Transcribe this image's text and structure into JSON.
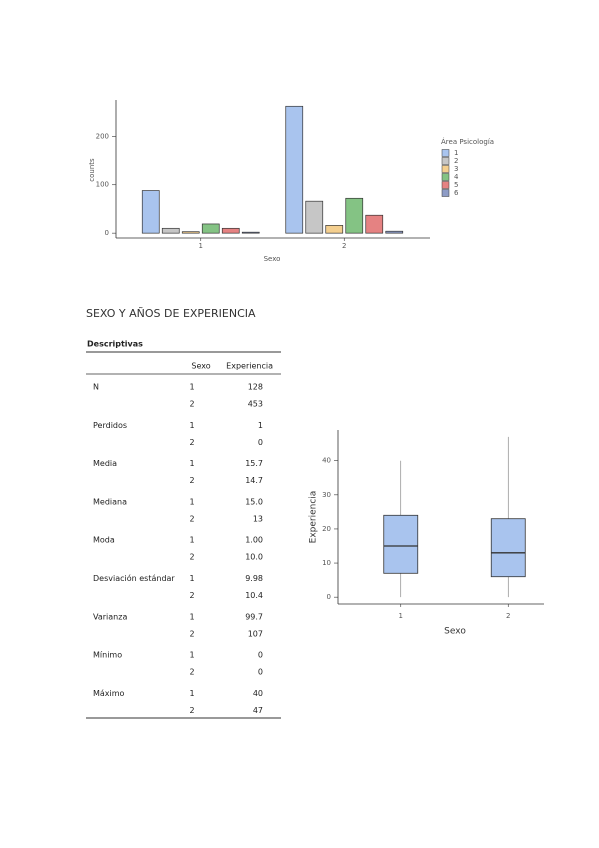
{
  "chart_data": [
    {
      "type": "bar",
      "xlabel": "Sexo",
      "ylabel": "counts",
      "legend_title": "Área Psicología",
      "categories": [
        "1",
        "2"
      ],
      "series": [
        {
          "name": "1",
          "color": "#a9c4ee",
          "values": [
            88,
            262
          ]
        },
        {
          "name": "2",
          "color": "#c6c6c6",
          "values": [
            10,
            66
          ]
        },
        {
          "name": "3",
          "color": "#f4cf8f",
          "values": [
            3,
            16
          ]
        },
        {
          "name": "4",
          "color": "#84c384",
          "values": [
            19,
            72
          ]
        },
        {
          "name": "5",
          "color": "#e58282",
          "values": [
            10,
            37
          ]
        },
        {
          "name": "6",
          "color": "#8e9cc6",
          "values": [
            2,
            4
          ]
        }
      ],
      "ylim": [
        -10,
        275
      ],
      "yticks": [
        0,
        100,
        200
      ],
      "grid": false,
      "legend": "right"
    },
    {
      "type": "box",
      "xlabel": "Sexo",
      "ylabel": "Experiencia",
      "color": "#a9c4ee",
      "categories": [
        "1",
        "2"
      ],
      "boxes": [
        {
          "min": 0,
          "q1": 7,
          "median": 15,
          "q3": 24,
          "max": 40
        },
        {
          "min": 0,
          "q1": 6,
          "median": 13,
          "q3": 23,
          "max": 47
        }
      ],
      "ylim": [
        -2,
        49
      ],
      "yticks": [
        0,
        10,
        20,
        30,
        40
      ],
      "grid": false
    }
  ],
  "heading": "SEXO Y AÑOS DE EXPERIENCIA",
  "table": {
    "title": "Descriptivas",
    "headers": [
      "Sexo",
      "Experiencia"
    ],
    "groups": [
      {
        "label": "N",
        "rows": [
          [
            "1",
            "128"
          ],
          [
            "2",
            "453"
          ]
        ]
      },
      {
        "label": "Perdidos",
        "rows": [
          [
            "1",
            "1"
          ],
          [
            "2",
            "0"
          ]
        ]
      },
      {
        "label": "Media",
        "rows": [
          [
            "1",
            "15.7"
          ],
          [
            "2",
            "14.7"
          ]
        ]
      },
      {
        "label": "Mediana",
        "rows": [
          [
            "1",
            "15.0"
          ],
          [
            "2",
            "13"
          ]
        ]
      },
      {
        "label": "Moda",
        "rows": [
          [
            "1",
            "1.00"
          ],
          [
            "2",
            "10.0"
          ]
        ]
      },
      {
        "label": "Desviación estándar",
        "rows": [
          [
            "1",
            "9.98"
          ],
          [
            "2",
            "10.4"
          ]
        ]
      },
      {
        "label": "Varianza",
        "rows": [
          [
            "1",
            "99.7"
          ],
          [
            "2",
            "107"
          ]
        ]
      },
      {
        "label": "Mínimo",
        "rows": [
          [
            "1",
            "0"
          ],
          [
            "2",
            "0"
          ]
        ]
      },
      {
        "label": "Máximo",
        "rows": [
          [
            "1",
            "40"
          ],
          [
            "2",
            "47"
          ]
        ]
      }
    ]
  }
}
